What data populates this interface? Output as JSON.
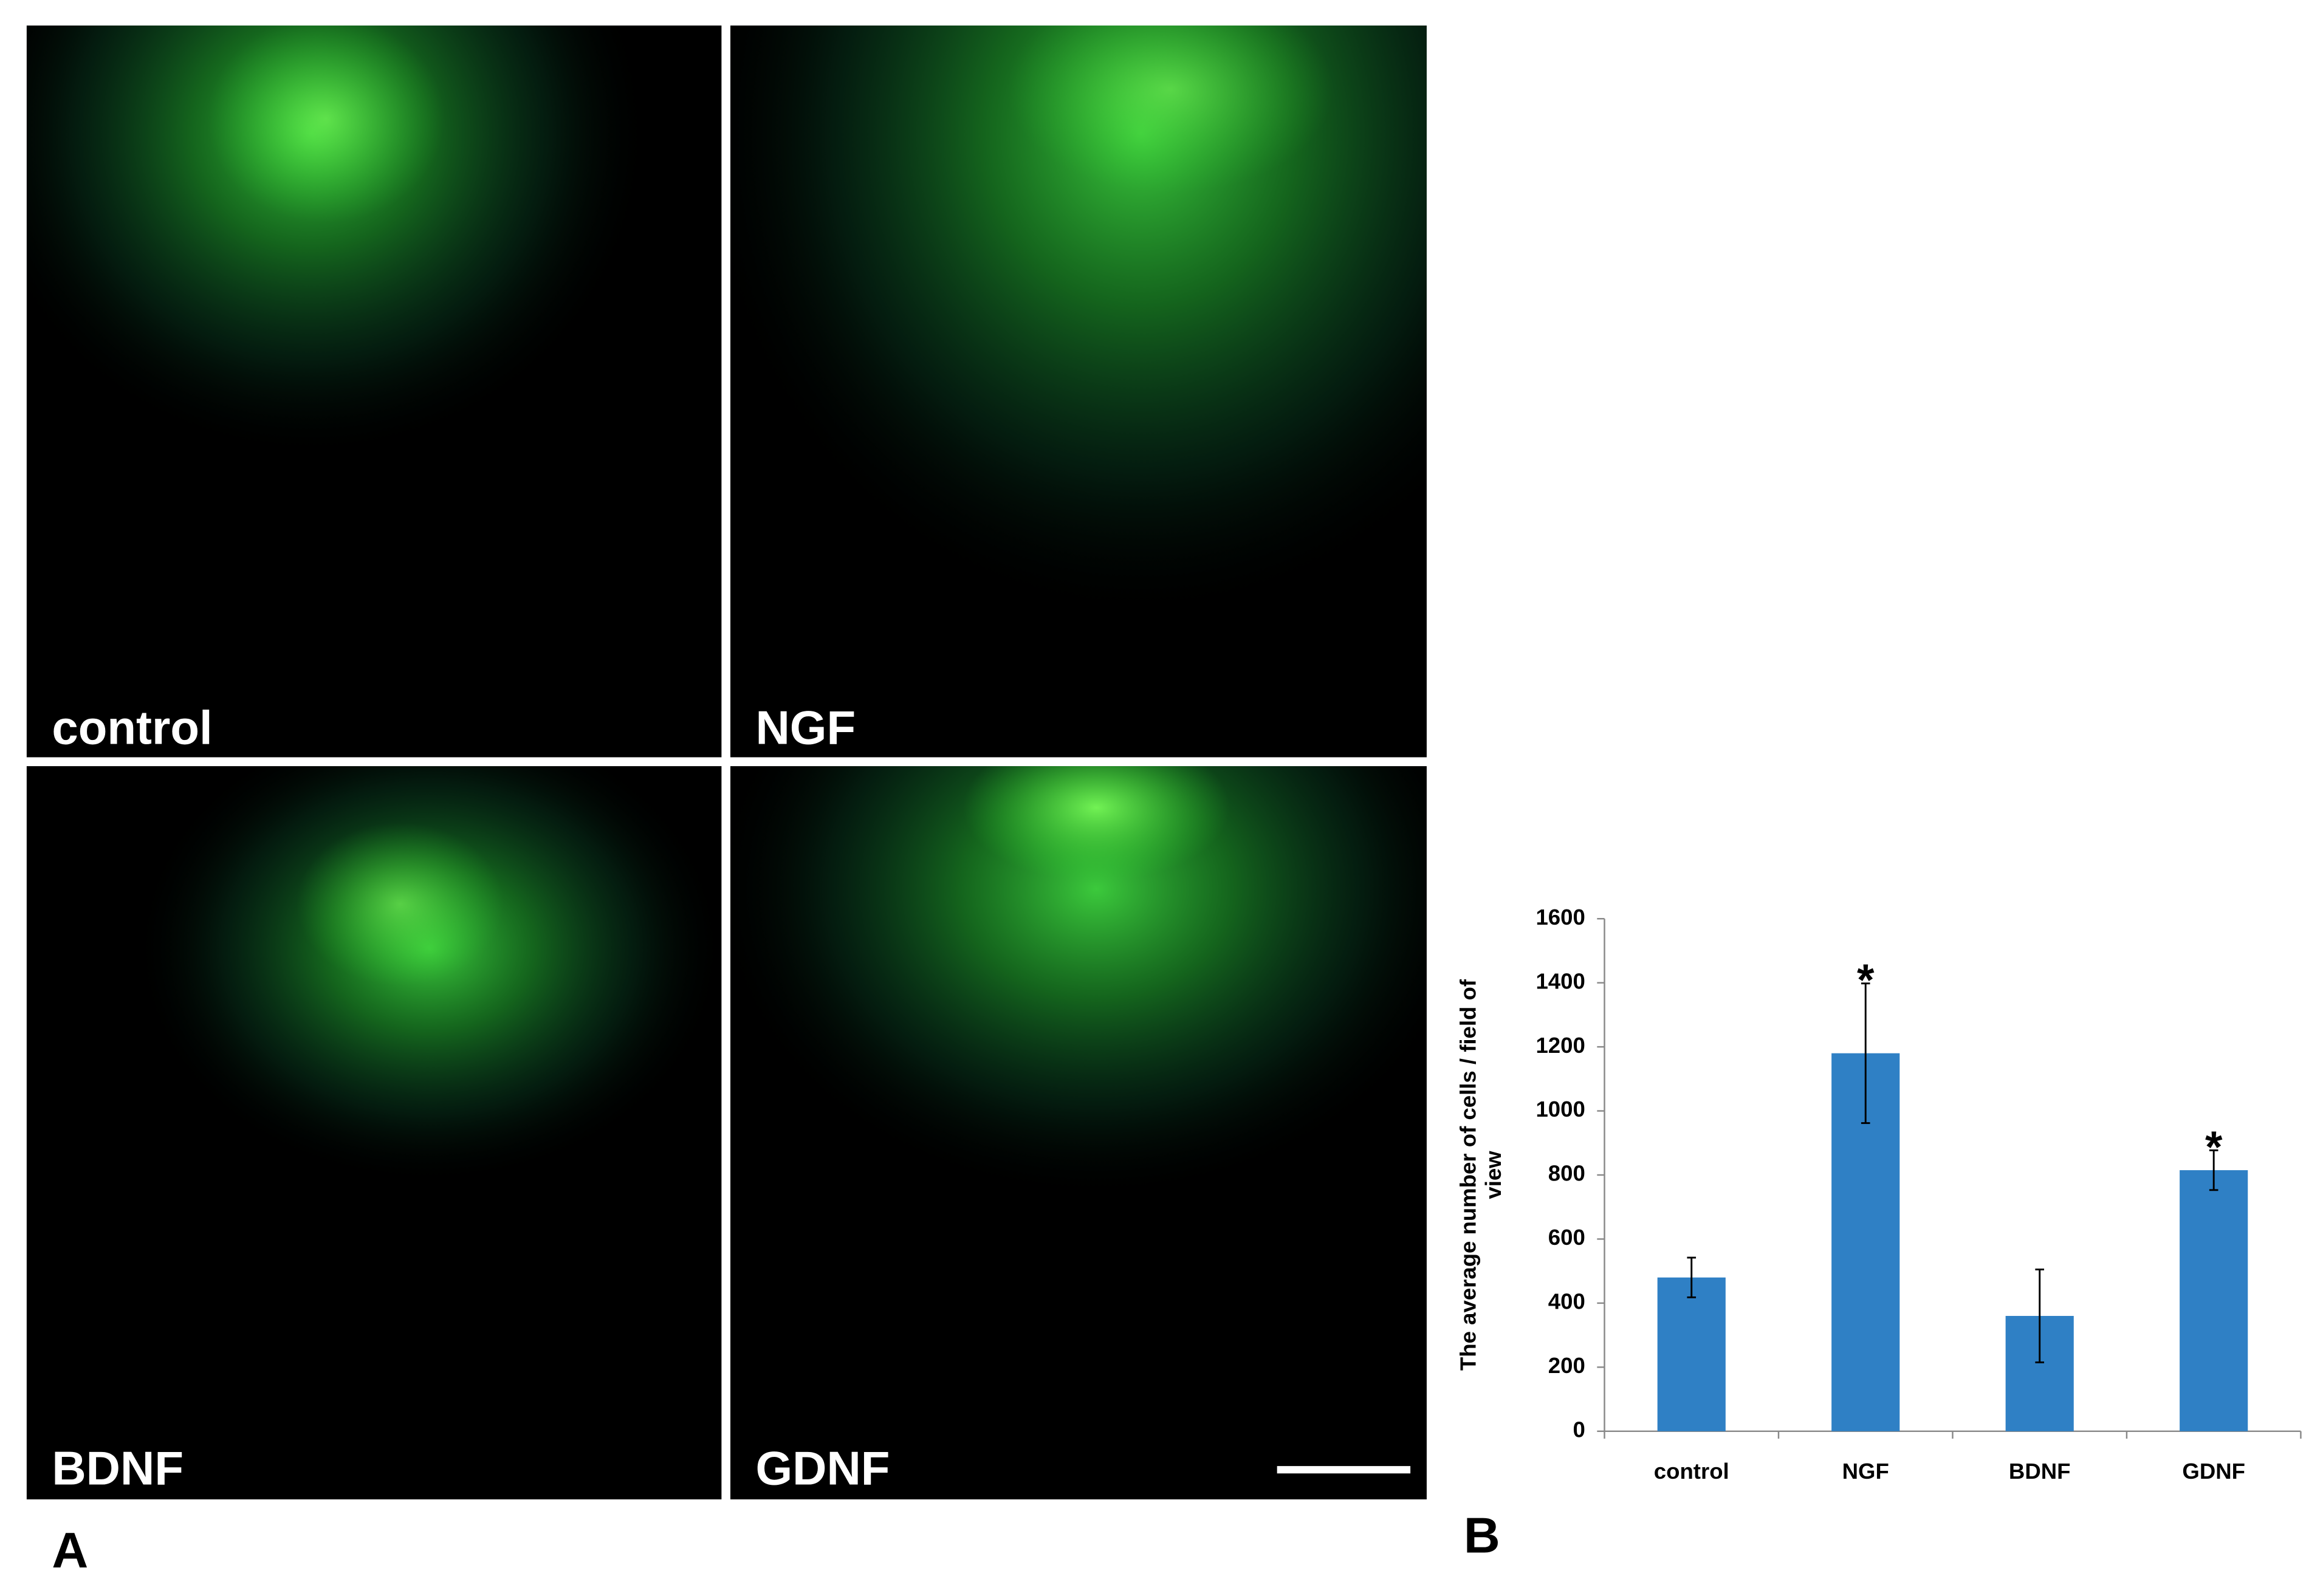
{
  "panels": [
    {
      "label": "control"
    },
    {
      "label": "NGF"
    },
    {
      "label": "BDNF"
    },
    {
      "label": "GDNF"
    }
  ],
  "figure_labels": [
    "A",
    "B"
  ],
  "chart_data": {
    "type": "bar",
    "ylabel_lines": [
      "The average number of cells / field of",
      "view"
    ],
    "categories": [
      "control",
      "NGF",
      "BDNF",
      "GDNF"
    ],
    "values": [
      480,
      1180,
      360,
      815
    ],
    "errors": [
      62,
      218,
      145,
      62
    ],
    "markers": [
      null,
      "*",
      null,
      "*"
    ],
    "color": "#2f80c5",
    "ylim": [
      0,
      1600
    ],
    "yticks": [
      0,
      200,
      400,
      600,
      800,
      1000,
      1200,
      1400,
      1600
    ],
    "grid": false
  }
}
